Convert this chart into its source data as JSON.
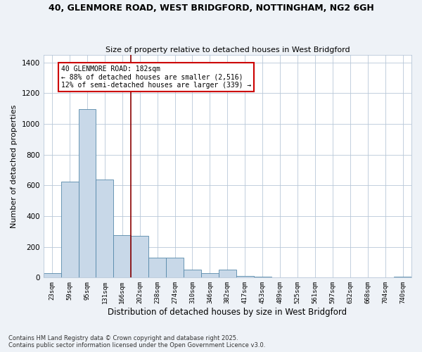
{
  "title_line1": "40, GLENMORE ROAD, WEST BRIDGFORD, NOTTINGHAM, NG2 6GH",
  "title_line2": "Size of property relative to detached houses in West Bridgford",
  "xlabel": "Distribution of detached houses by size in West Bridgford",
  "ylabel": "Number of detached properties",
  "categories": [
    "23sqm",
    "59sqm",
    "95sqm",
    "131sqm",
    "166sqm",
    "202sqm",
    "238sqm",
    "274sqm",
    "310sqm",
    "346sqm",
    "382sqm",
    "417sqm",
    "453sqm",
    "489sqm",
    "525sqm",
    "561sqm",
    "597sqm",
    "632sqm",
    "668sqm",
    "704sqm",
    "740sqm"
  ],
  "values": [
    30,
    625,
    1095,
    640,
    275,
    270,
    130,
    130,
    50,
    30,
    50,
    10,
    5,
    2,
    0,
    0,
    0,
    0,
    0,
    0,
    5
  ],
  "bar_color": "#c8d8e8",
  "bar_edge_color": "#5588aa",
  "vline_pos": 4.5,
  "vline_color": "#8B0000",
  "annotation_text": "40 GLENMORE ROAD: 182sqm\n← 88% of detached houses are smaller (2,516)\n12% of semi-detached houses are larger (339) →",
  "annotation_box_color": "white",
  "annotation_box_edge_color": "#cc0000",
  "ylim": [
    0,
    1450
  ],
  "yticks": [
    0,
    200,
    400,
    600,
    800,
    1000,
    1200,
    1400
  ],
  "footnote1": "Contains HM Land Registry data © Crown copyright and database right 2025.",
  "footnote2": "Contains public sector information licensed under the Open Government Licence v3.0.",
  "bg_color": "#eef2f7",
  "plot_bg_color": "#ffffff",
  "grid_color": "#b8c8d8"
}
